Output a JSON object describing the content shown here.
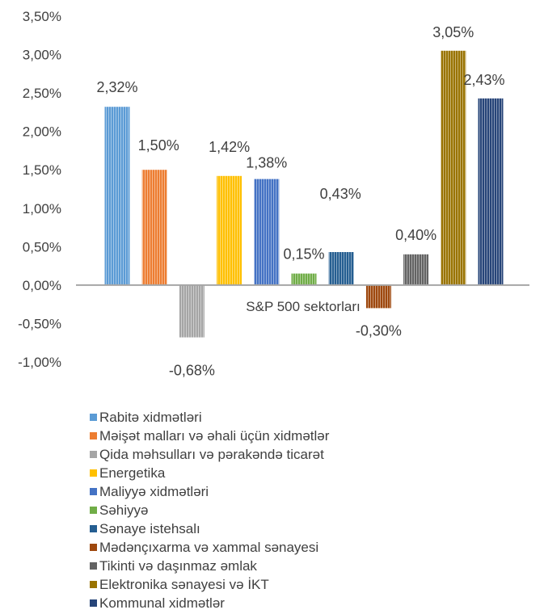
{
  "chart_data": {
    "type": "bar",
    "xlabel": "S&P 500 sektorları",
    "ylim": [
      -1.0,
      3.5
    ],
    "yticks": [
      "-1,00%",
      "-0,50%",
      "0,00%",
      "0,50%",
      "1,00%",
      "1,50%",
      "2,00%",
      "2,50%",
      "3,00%",
      "3,50%"
    ],
    "grid": false,
    "legend_position": "bottom",
    "series": [
      {
        "name": "Rabitə xidmətləri",
        "value": 2.32,
        "label": "2,32%",
        "color": "#5b9bd5"
      },
      {
        "name": "Məişət malları və əhali üçün xidmətlər",
        "value": 1.5,
        "label": "1,50%",
        "color": "#ed7d31"
      },
      {
        "name": "Qida məhsulları və pərakəndə ticarət",
        "value": -0.68,
        "label": "-0,68%",
        "color": "#a5a5a5"
      },
      {
        "name": "Energetika",
        "value": 1.42,
        "label": "1,42%",
        "color": "#ffc000"
      },
      {
        "name": "Maliyyə xidmətləri",
        "value": 1.38,
        "label": "1,38%",
        "color": "#4472c4"
      },
      {
        "name": "Səhiyyə",
        "value": 0.15,
        "label": "0,15%",
        "color": "#70ad47"
      },
      {
        "name": "Sənaye istehsalı",
        "value": 0.43,
        "label": "0,43%",
        "color": "#255e91"
      },
      {
        "name": "Mədənçıxarma və xammal sənayesi",
        "value": -0.3,
        "label": "-0,30%",
        "color": "#9e480e"
      },
      {
        "name": "Tikinti və daşınmaz əmlak",
        "value": 0.4,
        "label": "0,40%",
        "color": "#636363"
      },
      {
        "name": "Elektronika sənayesi və İKT",
        "value": 3.05,
        "label": "3,05%",
        "color": "#997300"
      },
      {
        "name": "Kommunal xidmətlər",
        "value": 2.43,
        "label": "2,43%",
        "color": "#264478"
      }
    ]
  }
}
